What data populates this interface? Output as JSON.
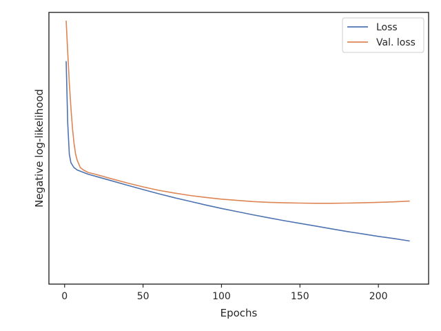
{
  "chart_data": {
    "type": "line",
    "xlabel": "Epochs",
    "ylabel": "Negative log-likelihood",
    "xlim": [
      -10,
      232
    ],
    "ylim": [
      0,
      1
    ],
    "xticks": [
      0,
      50,
      100,
      150,
      200
    ],
    "yticks_shown": false,
    "grid": false,
    "legend_position": "top-right",
    "series": [
      {
        "name": "Loss",
        "color": "#4c72b0",
        "x": [
          1,
          2,
          3,
          4,
          6,
          8,
          10,
          15,
          20,
          30,
          40,
          50,
          60,
          70,
          80,
          90,
          100,
          110,
          120,
          130,
          140,
          150,
          160,
          170,
          180,
          190,
          200,
          210,
          220
        ],
        "y": [
          0.835,
          0.58,
          0.455,
          0.42,
          0.4,
          0.39,
          0.385,
          0.373,
          0.364,
          0.346,
          0.328,
          0.31,
          0.293,
          0.277,
          0.262,
          0.247,
          0.233,
          0.22,
          0.207,
          0.195,
          0.183,
          0.172,
          0.161,
          0.15,
          0.139,
          0.129,
          0.119,
          0.11,
          0.1
        ]
      },
      {
        "name": "Val. loss",
        "color": "#dd8452",
        "x": [
          1,
          2,
          3,
          4,
          5,
          6,
          7,
          8,
          10,
          12,
          15,
          20,
          30,
          40,
          50,
          60,
          70,
          80,
          90,
          100,
          110,
          120,
          130,
          140,
          150,
          160,
          170,
          180,
          190,
          200,
          210,
          220
        ],
        "y": [
          1.0,
          0.87,
          0.745,
          0.645,
          0.56,
          0.5,
          0.455,
          0.43,
          0.4,
          0.39,
          0.38,
          0.372,
          0.354,
          0.337,
          0.321,
          0.307,
          0.296,
          0.286,
          0.278,
          0.271,
          0.266,
          0.261,
          0.258,
          0.256,
          0.255,
          0.254,
          0.254,
          0.255,
          0.256,
          0.258,
          0.26,
          0.263
        ]
      }
    ]
  }
}
